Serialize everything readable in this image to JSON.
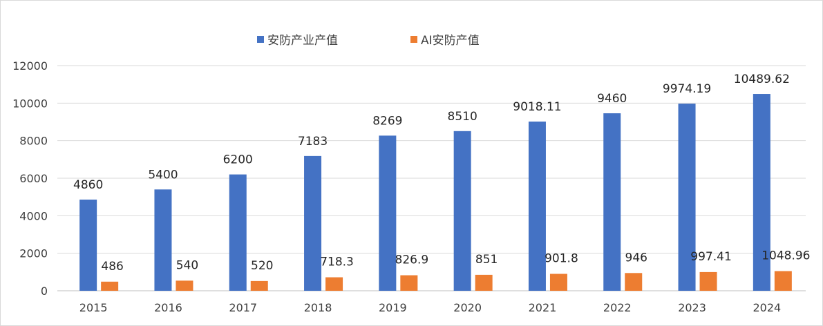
{
  "chart_data": {
    "type": "bar",
    "title": "",
    "xlabel": "",
    "ylabel": "",
    "categories": [
      "2015",
      "2016",
      "2017",
      "2018",
      "2019",
      "2020",
      "2021",
      "2022",
      "2023",
      "2024"
    ],
    "series": [
      {
        "name": "安防产业产值",
        "color": "#4472c4",
        "values": [
          4860,
          5400,
          6200,
          7183,
          8269,
          8510,
          9018.11,
          9460,
          9974.19,
          10489.62
        ],
        "labels": [
          "4860",
          "5400",
          "6200",
          "7183",
          "8269",
          "8510",
          "9018.11",
          "9460",
          "9974.19",
          "10489.62"
        ]
      },
      {
        "name": "AI安防产值",
        "color": "#ed7d31",
        "values": [
          486,
          540,
          520,
          718.3,
          826.9,
          851,
          901.8,
          946,
          997.41,
          1048.96
        ],
        "labels": [
          "486",
          "540",
          "520",
          "718.3",
          "826.9",
          "851",
          "901.8",
          "946",
          "997.41",
          "1048.96"
        ]
      }
    ],
    "ylim": [
      0,
      12000
    ],
    "yticks": [
      "0",
      "2000",
      "4000",
      "6000",
      "8000",
      "10000",
      "12000"
    ],
    "grid": true,
    "legend_position": "top-center"
  }
}
